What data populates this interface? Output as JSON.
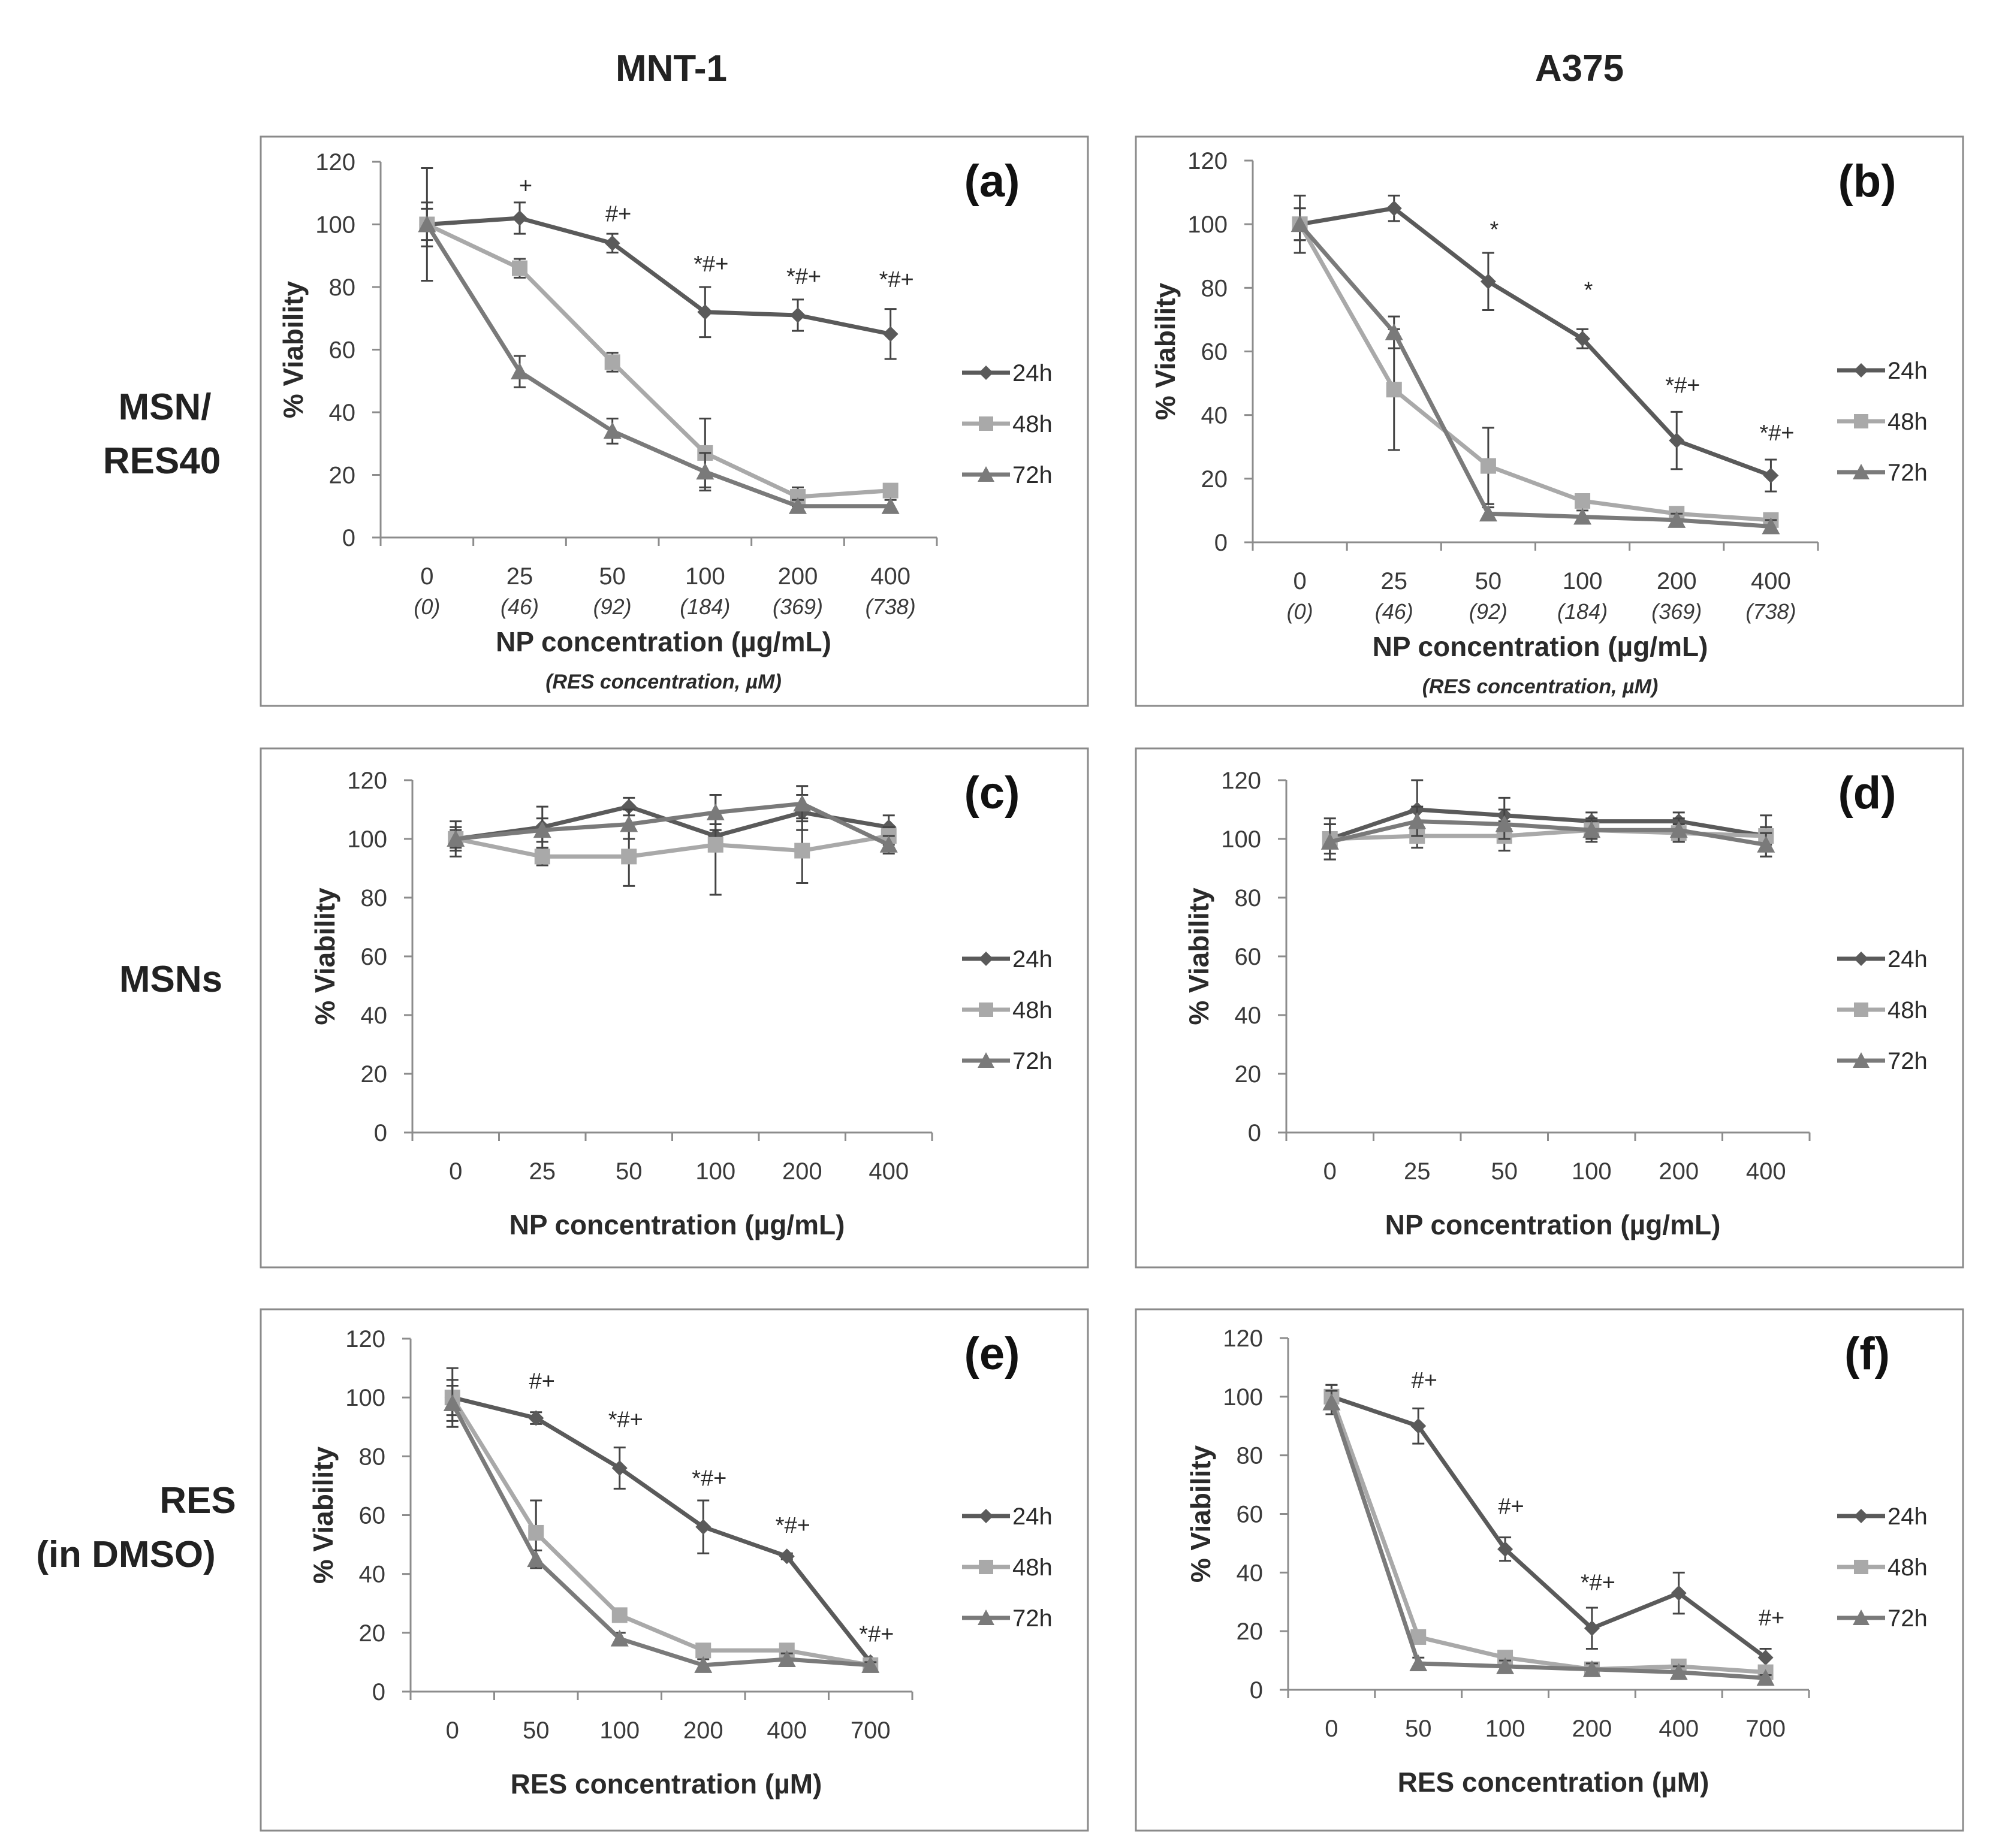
{
  "figure": {
    "column_titles": [
      "MNT-1",
      "A375"
    ],
    "row_labels": [
      [
        "MSN/",
        "RES40"
      ],
      [
        "MSNs"
      ],
      [
        "RES",
        "(in DMSO)"
      ]
    ]
  },
  "series_styles": {
    "24h": {
      "color": "#5a5a5a",
      "marker": "diamond"
    },
    "48h": {
      "color": "#a9a9a9",
      "marker": "square"
    },
    "72h": {
      "color": "#7a7a7a",
      "marker": "triangle"
    }
  },
  "chart_data": [
    {
      "id": "a",
      "letter": "(a)",
      "type": "line",
      "categories": [
        "0",
        "25",
        "50",
        "100",
        "200",
        "400"
      ],
      "sub_categories": [
        "(0)",
        "(46)",
        "(92)",
        "(184)",
        "(369)",
        "(738)"
      ],
      "xlabel": "NP concentration (µg/mL)",
      "xlabel_sub": "(RES concentration, µM)",
      "ylabel": "% Viability",
      "ylim": [
        0,
        120
      ],
      "yticks": [
        0,
        20,
        40,
        60,
        80,
        100,
        120
      ],
      "series": [
        {
          "name": "24h",
          "values": [
            100,
            102,
            94,
            72,
            71,
            65
          ],
          "errors": [
            18,
            5,
            3,
            8,
            5,
            8
          ]
        },
        {
          "name": "48h",
          "values": [
            100,
            86,
            56,
            27,
            13,
            15
          ],
          "errors": [
            5,
            3,
            3,
            11,
            3,
            2
          ]
        },
        {
          "name": "72h",
          "values": [
            100,
            53,
            34,
            21,
            10,
            10
          ],
          "errors": [
            7,
            5,
            4,
            6,
            2,
            2
          ]
        }
      ],
      "annotations": [
        "+",
        "#+",
        "*#+",
        "*#+",
        "*#+"
      ],
      "annotation_index": [
        1,
        2,
        3,
        4,
        5
      ],
      "annotation_value": [
        110,
        101,
        85,
        81,
        80
      ]
    },
    {
      "id": "b",
      "letter": "(b)",
      "type": "line",
      "categories": [
        "0",
        "25",
        "50",
        "100",
        "200",
        "400"
      ],
      "sub_categories": [
        "(0)",
        "(46)",
        "(92)",
        "(184)",
        "(369)",
        "(738)"
      ],
      "xlabel": "NP concentration (µg/mL)",
      "xlabel_sub": "(RES concentration, µM)",
      "ylabel": "% Viability",
      "ylim": [
        0,
        120
      ],
      "yticks": [
        0,
        20,
        40,
        60,
        80,
        100,
        120
      ],
      "series": [
        {
          "name": "24h",
          "values": [
            100,
            105,
            82,
            64,
            32,
            21
          ],
          "errors": [
            9,
            4,
            9,
            3,
            9,
            5
          ]
        },
        {
          "name": "48h",
          "values": [
            100,
            48,
            24,
            13,
            9,
            7
          ],
          "errors": [
            5,
            19,
            12,
            2,
            2,
            2
          ]
        },
        {
          "name": "72h",
          "values": [
            100,
            66,
            9,
            8,
            7,
            5
          ],
          "errors": [
            5,
            5,
            2,
            2,
            2,
            2
          ]
        }
      ],
      "annotations": [
        "*",
        "*",
        "*#+",
        "*#+"
      ],
      "annotation_index": [
        2,
        3,
        4,
        5
      ],
      "annotation_value": [
        96,
        77,
        47,
        32
      ]
    },
    {
      "id": "c",
      "letter": "(c)",
      "type": "line",
      "categories": [
        "0",
        "25",
        "50",
        "100",
        "200",
        "400"
      ],
      "xlabel": "NP concentration (µg/mL)",
      "ylabel": "% Viability",
      "ylim": [
        0,
        120
      ],
      "yticks": [
        0,
        20,
        40,
        60,
        80,
        100,
        120
      ],
      "series": [
        {
          "name": "24h",
          "values": [
            100,
            104,
            111,
            101,
            109,
            104
          ],
          "errors": [
            6,
            7,
            3,
            4,
            6,
            4
          ]
        },
        {
          "name": "48h",
          "values": [
            100,
            94,
            94,
            98,
            96,
            101
          ],
          "errors": [
            4,
            3,
            10,
            17,
            11,
            3
          ]
        },
        {
          "name": "72h",
          "values": [
            100,
            103,
            105,
            109,
            112,
            98
          ],
          "errors": [
            3,
            4,
            5,
            6,
            6,
            3
          ]
        }
      ],
      "annotations": [],
      "annotation_index": [],
      "annotation_value": []
    },
    {
      "id": "d",
      "letter": "(d)",
      "type": "line",
      "categories": [
        "0",
        "25",
        "50",
        "100",
        "200",
        "400"
      ],
      "xlabel": "NP concentration (µg/mL)",
      "ylabel": "% Viability",
      "ylim": [
        0,
        120
      ],
      "yticks": [
        0,
        20,
        40,
        60,
        80,
        100,
        120
      ],
      "series": [
        {
          "name": "24h",
          "values": [
            100,
            110,
            108,
            106,
            106,
            101
          ],
          "errors": [
            7,
            10,
            6,
            3,
            3,
            7
          ]
        },
        {
          "name": "48h",
          "values": [
            100,
            101,
            101,
            103,
            102,
            101
          ],
          "errors": [
            5,
            4,
            5,
            3,
            3,
            3
          ]
        },
        {
          "name": "72h",
          "values": [
            99,
            106,
            105,
            103,
            103,
            98
          ],
          "errors": [
            6,
            5,
            5,
            4,
            4,
            4
          ]
        }
      ],
      "annotations": [],
      "annotation_index": [],
      "annotation_value": []
    },
    {
      "id": "e",
      "letter": "(e)",
      "type": "line",
      "categories": [
        "0",
        "50",
        "100",
        "200",
        "400",
        "700"
      ],
      "xlabel": "RES concentration (µM)",
      "ylabel": "% Viability",
      "ylim": [
        0,
        120
      ],
      "yticks": [
        0,
        20,
        40,
        60,
        80,
        100,
        120
      ],
      "series": [
        {
          "name": "24h",
          "values": [
            100,
            93,
            76,
            56,
            46,
            10
          ],
          "errors": [
            10,
            2,
            7,
            9,
            1,
            1
          ]
        },
        {
          "name": "48h",
          "values": [
            100,
            54,
            26,
            14,
            14,
            9
          ],
          "errors": [
            6,
            11,
            2,
            2,
            2,
            1
          ]
        },
        {
          "name": "72h",
          "values": [
            98,
            45,
            18,
            9,
            11,
            9
          ],
          "errors": [
            6,
            3,
            2,
            2,
            2,
            1
          ]
        }
      ],
      "annotations": [
        "#+",
        "*#+",
        "*#+",
        "*#+",
        "*#+"
      ],
      "annotation_index": [
        1,
        2,
        3,
        4,
        5
      ],
      "annotation_value": [
        103,
        90,
        70,
        54,
        17
      ]
    },
    {
      "id": "f",
      "letter": "(f)",
      "type": "line",
      "categories": [
        "0",
        "50",
        "100",
        "200",
        "400",
        "700"
      ],
      "xlabel": "RES concentration (µM)",
      "ylabel": "% Viability",
      "ylim": [
        0,
        120
      ],
      "yticks": [
        0,
        20,
        40,
        60,
        80,
        100,
        120
      ],
      "series": [
        {
          "name": "24h",
          "values": [
            100,
            90,
            48,
            21,
            33,
            11
          ],
          "errors": [
            4,
            6,
            4,
            7,
            7,
            3
          ]
        },
        {
          "name": "48h",
          "values": [
            100,
            18,
            11,
            7,
            8,
            6
          ],
          "errors": [
            4,
            2,
            2,
            2,
            2,
            2
          ]
        },
        {
          "name": "72h",
          "values": [
            98,
            9,
            8,
            7,
            6,
            4
          ],
          "errors": [
            4,
            2,
            2,
            2,
            2,
            1
          ]
        }
      ],
      "annotations": [
        "#+",
        "#+",
        "*#+",
        "#+"
      ],
      "annotation_index": [
        1,
        2,
        3,
        5
      ],
      "annotation_value": [
        103,
        60,
        34,
        22
      ]
    }
  ]
}
